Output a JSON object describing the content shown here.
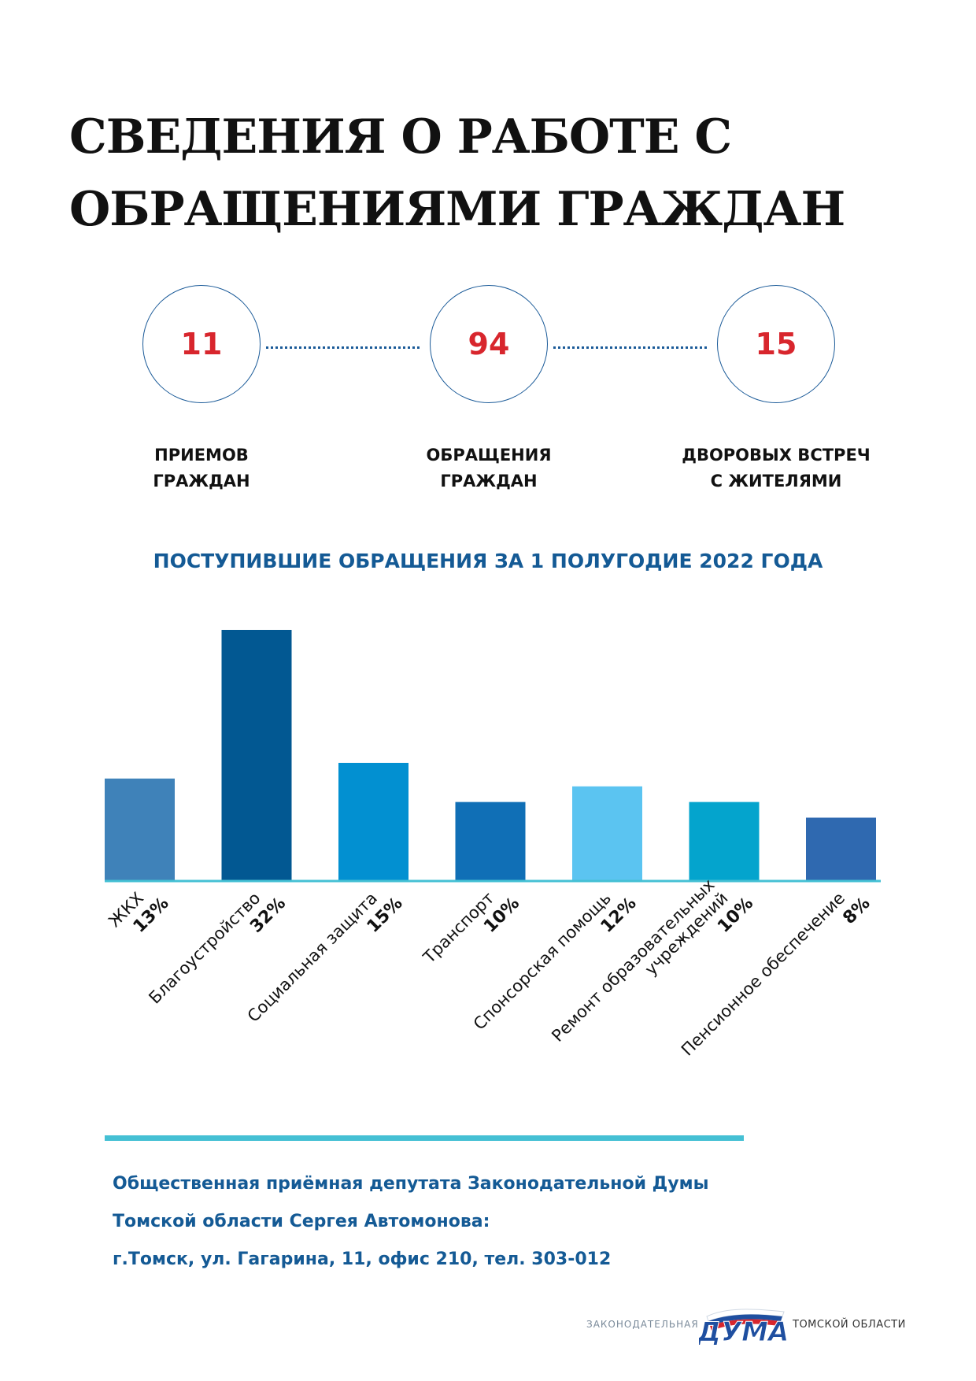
{
  "title": {
    "line1": "СВЕДЕНИЯ О РАБОТЕ С",
    "line2": "ОБРАЩЕНИЯМИ ГРАЖДАН"
  },
  "stats": [
    {
      "value": "11",
      "label_line1": "ПРИЕМОВ",
      "label_line2": "ГРАЖДАН"
    },
    {
      "value": "94",
      "label_line1": "ОБРАЩЕНИЯ",
      "label_line2": "ГРАЖДАН"
    },
    {
      "value": "15",
      "label_line1": "ДВОРОВЫХ ВСТРЕЧ",
      "label_line2": "С ЖИТЕЛЯМИ"
    }
  ],
  "chart_data": {
    "type": "bar",
    "title": "ПОСТУПИВШИЕ ОБРАЩЕНИЯ ЗА 1 ПОЛУГОДИЕ 2022 ГОДА",
    "categories": [
      [
        "ЖКХ"
      ],
      [
        "Благоустройство"
      ],
      [
        "Социальная защита"
      ],
      [
        "Транспорт"
      ],
      [
        "Спонсорская помощь"
      ],
      [
        "Ремонт образовательных",
        "учреждений"
      ],
      [
        "Пенсионное обеспечение"
      ]
    ],
    "values": [
      13,
      32,
      15,
      10,
      12,
      10,
      8
    ],
    "value_labels": [
      "13%",
      "32%",
      "15%",
      "10%",
      "12%",
      "10%",
      "8%"
    ],
    "colors": [
      "#3f82b9",
      "#025892",
      "#0290d1",
      "#106fb6",
      "#5bc4f1",
      "#04a4cd",
      "#2f69b0"
    ],
    "baseline_color": "#45c0d4",
    "ylim": [
      0,
      32
    ]
  },
  "footer": {
    "line1": "Общественная приёмная депутата Законодательной Думы",
    "line2_prefix": "Томской области ",
    "line2_name": "Сергея Автомонова",
    "line2_suffix": ":",
    "line3": "г.Томск, ул. Гагарина, 11, офис 210, тел. 303-012"
  },
  "logo": {
    "prefix": "ЗАКОНОДАТЕЛЬНАЯ",
    "word": "ДУМА",
    "suffix": "ТОМСКОЙ ОБЛАСТИ",
    "flag_colors": [
      "#ffffff",
      "#1f4fa0",
      "#d8262d"
    ]
  }
}
